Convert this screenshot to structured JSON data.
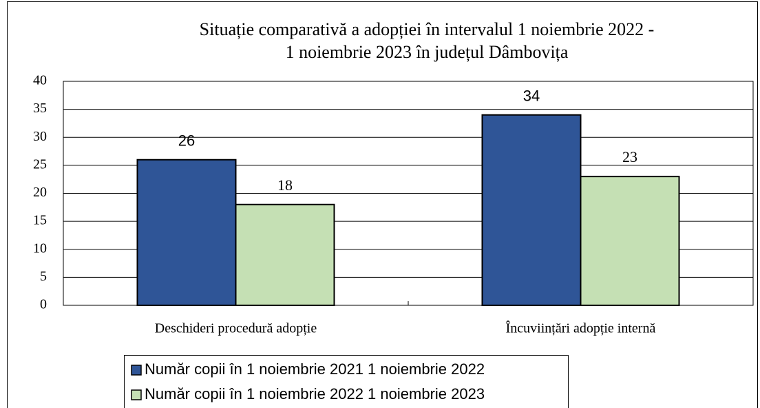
{
  "chart_data": {
    "type": "bar",
    "title": [
      "Situație comparativă a adopției în intervalul 1 noiembrie 2022 -",
      "1 noiembrie 2023 în județul Dâmbovița"
    ],
    "categories": [
      "Deschideri procedură adopție",
      "Încuviințări adopție internă"
    ],
    "series": [
      {
        "name": "Număr copii în 1 noiembrie 2021 1 noiembrie 2022",
        "color": "#2f5597",
        "values": [
          26,
          34
        ]
      },
      {
        "name": "Număr copii în 1 noiembrie 2022 1 noiembrie 2023",
        "color": "#c5e0b4",
        "values": [
          18,
          23
        ]
      }
    ],
    "ylim": [
      0,
      40
    ],
    "yticks": [
      0,
      5,
      10,
      15,
      20,
      25,
      30,
      35,
      40
    ],
    "grid": true,
    "legend": "bottom"
  }
}
